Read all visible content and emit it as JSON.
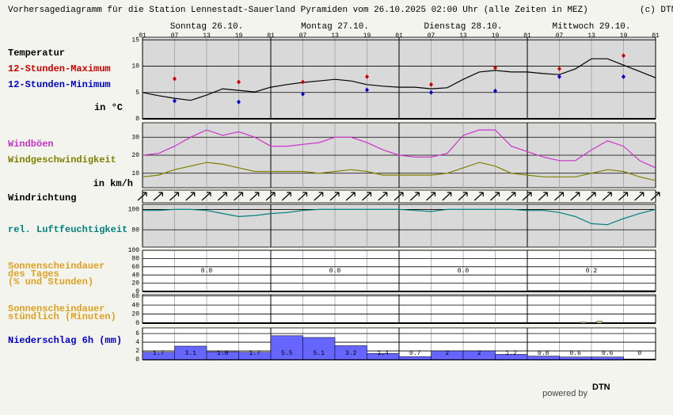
{
  "title": "Vorhersagediagramm für die Station Lennestadt-Sauerland Pyramiden vom 26.10.2025 02:00 Uhr (alle Zeiten in MEZ)",
  "copyright": "(c) DTN",
  "days": [
    "Sonntag 26.10.",
    "Montag 27.10.",
    "Dienstag 28.10.",
    "Mittwoch 29.10."
  ],
  "hour_labels": [
    "01",
    "07",
    "13",
    "19",
    "01",
    "07",
    "13",
    "19",
    "01",
    "07",
    "13",
    "19",
    "01",
    "07",
    "13",
    "19",
    "01"
  ],
  "chart_data": [
    {
      "type": "line",
      "title": "Temperatur",
      "unit_label": "in °C",
      "color": "#000000",
      "values": [
        5.0,
        4.4,
        3.9,
        3.5,
        4.5,
        5.7,
        5.4,
        5.1,
        6.0,
        6.5,
        6.9,
        7.2,
        7.5,
        7.2,
        6.5,
        6.2,
        6.0,
        6.0,
        5.7,
        5.9,
        7.5,
        8.9,
        9.2,
        8.9,
        8.9,
        8.6,
        8.4,
        9.5,
        11.4,
        11.4,
        10.2,
        9.0,
        7.8
      ],
      "series": [
        {
          "name": "12-Stunden-Maximum",
          "color": "#cc0000",
          "values": [
            7.6,
            7.0,
            7.0,
            8.0,
            6.5,
            9.7,
            9.5,
            12.0
          ]
        },
        {
          "name": "12-Stunden-Minimum",
          "color": "#0000cc",
          "values": [
            3.4,
            3.2,
            4.7,
            5.5,
            5.0,
            5.3,
            8.0,
            8.0
          ]
        }
      ],
      "ylim": [
        0,
        15.5
      ],
      "yticks": [
        0,
        5,
        10,
        15
      ]
    },
    {
      "type": "line",
      "unit_label": "in km/h",
      "series": [
        {
          "name": "Windböen",
          "color": "#cc33cc",
          "values": [
            20,
            21,
            25,
            30,
            34,
            31,
            33,
            30,
            25,
            25,
            26,
            27,
            30,
            30,
            27,
            23,
            20,
            19,
            19,
            21,
            31,
            34,
            34,
            25,
            22,
            19,
            17,
            17,
            23,
            28,
            25,
            17,
            13
          ]
        },
        {
          "name": "Windgeschwindigkeit",
          "color": "#808000",
          "values": [
            8,
            9,
            12,
            14,
            16,
            15,
            13,
            11,
            11,
            11,
            11,
            10,
            11,
            12,
            11,
            9,
            9,
            9,
            9,
            10,
            13,
            16,
            14,
            10,
            9,
            8,
            8,
            8,
            10,
            12,
            11,
            8,
            6
          ]
        }
      ],
      "ylim": [
        2,
        38
      ],
      "yticks": [
        10,
        20,
        30
      ]
    },
    {
      "type": "arrows",
      "title": "Windrichtung"
    },
    {
      "type": "line",
      "series": [
        {
          "name": "rel. Luftfeuchtigkeit",
          "color": "#008080",
          "values": [
            99,
            99,
            100,
            100,
            99,
            96,
            93,
            94,
            96,
            97,
            99,
            100,
            100,
            100,
            100,
            100,
            100,
            99,
            98,
            100,
            100,
            100,
            100,
            100,
            99,
            99,
            97,
            93,
            86,
            85,
            91,
            96,
            100
          ]
        }
      ],
      "ylim": [
        63,
        105
      ],
      "yticks": [
        80,
        100
      ]
    },
    {
      "type": "bar",
      "title_lines": [
        "Sonnenscheindauer",
        "des Tages",
        "(% und Stunden)"
      ],
      "color": "#000000",
      "values": [
        0,
        0,
        0,
        2
      ],
      "hours": [
        "0.0",
        "0.0",
        "0.0",
        "0.2"
      ],
      "ylim": [
        0,
        100
      ],
      "yticks": [
        0,
        20,
        40,
        60,
        80,
        100
      ]
    },
    {
      "type": "bar",
      "title_lines": [
        "Sonnenscheindauer",
        "stündlich (Minuten)"
      ],
      "color": "#e8d890",
      "values": [
        0,
        0,
        0,
        0,
        0,
        0,
        0,
        0,
        0,
        0,
        0,
        0,
        0,
        0,
        0,
        0,
        0,
        0,
        0,
        0,
        0,
        0,
        0,
        0,
        0,
        0,
        0,
        0,
        0,
        0,
        0,
        0,
        0,
        0,
        0,
        0,
        0,
        0,
        0,
        0,
        0,
        0,
        0,
        0,
        0,
        0,
        0,
        0,
        0,
        0,
        0,
        0,
        0,
        0,
        0,
        0,
        0,
        0,
        0,
        0,
        0,
        0,
        0,
        0,
        0,
        0,
        0,
        0,
        0,
        0,
        0,
        0,
        0,
        0,
        0,
        0,
        0,
        0,
        0,
        0,
        0,
        0,
        2,
        0,
        0,
        4,
        0,
        0,
        0,
        0,
        0,
        0,
        0,
        0,
        0,
        0
      ],
      "ylim": [
        0,
        63
      ],
      "yticks": [
        0,
        20,
        40,
        60
      ]
    },
    {
      "type": "bar",
      "title": "Niederschlag 6h (mm)",
      "color": "#6666ff",
      "values": [
        1.7,
        3.1,
        1.8,
        1.7,
        5.5,
        5.1,
        3.2,
        1.4,
        0.7,
        2,
        2,
        1.2,
        0.8,
        0.6,
        0.6,
        0
      ],
      "ylim": [
        0,
        7.3
      ],
      "yticks": [
        0,
        2,
        4,
        6
      ]
    }
  ],
  "footer": {
    "powered_by": "powered by",
    "logo": "DTN"
  }
}
